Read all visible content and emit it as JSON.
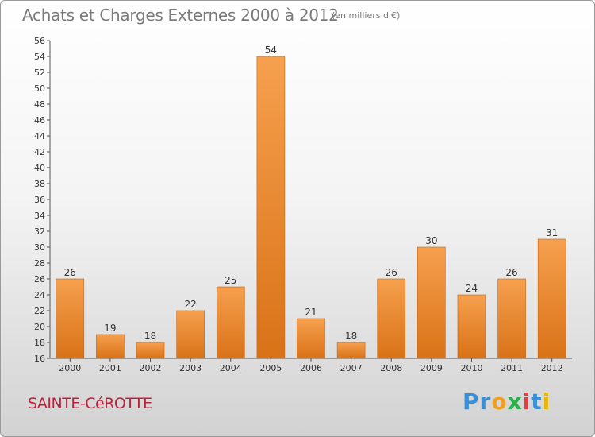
{
  "header": {
    "title": "Achats et Charges Externes 2000 à 2012",
    "unit": "(en milliers d'€)"
  },
  "footer": {
    "commune": "SAINTE-CéROTTE",
    "brand": {
      "letters": [
        "P",
        "r",
        "o",
        "x",
        "i",
        "t",
        "i"
      ],
      "colors": [
        "#3b8fd6",
        "#3b8fd6",
        "#f0a020",
        "#2bb04a",
        "#e04040",
        "#3b8fd6",
        "#e8b800"
      ]
    }
  },
  "colors": {
    "bar_top": "#f6a04e",
    "bar_bottom": "#d97217",
    "bar_edge": "#c8660f",
    "axis": "#555555",
    "grid": "#d8d8d8",
    "label": "#333333"
  },
  "chart_data": {
    "type": "bar",
    "categories": [
      "2000",
      "2001",
      "2002",
      "2003",
      "2004",
      "2005",
      "2006",
      "2007",
      "2008",
      "2009",
      "2010",
      "2011",
      "2012"
    ],
    "values": [
      26,
      19,
      18,
      22,
      25,
      54,
      21,
      18,
      26,
      30,
      24,
      26,
      31
    ],
    "title": "Achats et Charges Externes 2000 à 2012",
    "ylim": [
      16,
      56
    ],
    "yticks": [
      16,
      18,
      20,
      22,
      24,
      26,
      28,
      30,
      32,
      34,
      36,
      38,
      40,
      42,
      44,
      46,
      48,
      50,
      52,
      54,
      56
    ],
    "data_labels": true,
    "grid": false,
    "legend": "none"
  }
}
